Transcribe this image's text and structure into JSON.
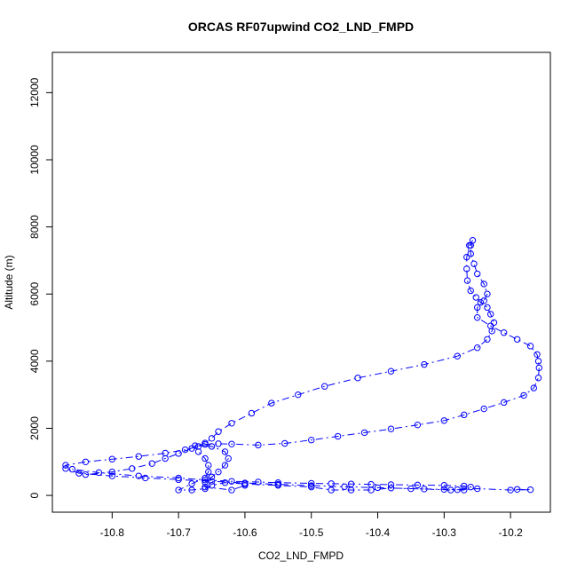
{
  "chart_data": {
    "type": "scatter",
    "title": "ORCAS RF07upwind CO2_LND_FMPD",
    "xlabel": "CO2_LND_FMPD",
    "ylabel": "Altitude (m)",
    "xlim": [
      -10.89,
      -10.14
    ],
    "ylim": [
      -500,
      13200
    ],
    "x_ticks": [
      -10.8,
      -10.7,
      -10.6,
      -10.5,
      -10.4,
      -10.3,
      -10.2
    ],
    "x_tick_labels": [
      "-10.8",
      "-10.7",
      "-10.6",
      "-10.5",
      "-10.4",
      "-10.3",
      "-10.2"
    ],
    "y_ticks": [
      0,
      2000,
      4000,
      6000,
      8000,
      10000,
      12000
    ],
    "y_tick_labels": [
      "0",
      "2000",
      "4000",
      "6000",
      "8000",
      "10000",
      "12000"
    ],
    "grid": false,
    "legend": "none",
    "series": [
      {
        "marker": "open-circle",
        "line": "dash-dot",
        "color": "#0000ff",
        "points": [
          [
            -10.19,
            180
          ],
          [
            -10.17,
            170
          ],
          [
            -10.2,
            160
          ],
          [
            -10.25,
            200
          ],
          [
            -10.28,
            170
          ],
          [
            -10.3,
            180
          ],
          [
            -10.35,
            200
          ],
          [
            -10.4,
            230
          ],
          [
            -10.45,
            260
          ],
          [
            -10.5,
            290
          ],
          [
            -10.55,
            330
          ],
          [
            -10.6,
            370
          ],
          [
            -10.65,
            420
          ],
          [
            -10.7,
            470
          ],
          [
            -10.75,
            520
          ],
          [
            -10.8,
            580
          ],
          [
            -10.85,
            660
          ],
          [
            -10.87,
            800
          ],
          [
            -10.87,
            900
          ],
          [
            -10.84,
            1000
          ],
          [
            -10.8,
            1080
          ],
          [
            -10.76,
            1160
          ],
          [
            -10.72,
            1260
          ],
          [
            -10.69,
            1360
          ],
          [
            -10.67,
            1460
          ],
          [
            -10.66,
            1520
          ],
          [
            -10.64,
            1540
          ],
          [
            -10.62,
            1530
          ],
          [
            -10.58,
            1500
          ],
          [
            -10.54,
            1550
          ],
          [
            -10.5,
            1650
          ],
          [
            -10.46,
            1760
          ],
          [
            -10.42,
            1870
          ],
          [
            -10.38,
            1980
          ],
          [
            -10.34,
            2100
          ],
          [
            -10.3,
            2230
          ],
          [
            -10.27,
            2400
          ],
          [
            -10.24,
            2580
          ],
          [
            -10.21,
            2770
          ],
          [
            -10.18,
            2980
          ],
          [
            -10.165,
            3200
          ],
          [
            -10.158,
            3500
          ],
          [
            -10.157,
            3800
          ],
          [
            -10.158,
            4000
          ],
          [
            -10.16,
            4200
          ],
          [
            -10.17,
            4450
          ],
          [
            -10.19,
            4650
          ],
          [
            -10.21,
            4850
          ],
          [
            -10.23,
            5050
          ],
          [
            -10.25,
            5300
          ],
          [
            -10.25,
            5600
          ],
          [
            -10.24,
            5800
          ],
          [
            -10.235,
            6000
          ],
          [
            -10.24,
            6300
          ],
          [
            -10.25,
            6600
          ],
          [
            -10.255,
            6900
          ],
          [
            -10.26,
            7200
          ],
          [
            -10.26,
            7450
          ],
          [
            -10.257,
            7600
          ],
          [
            -10.262,
            7450
          ],
          [
            -10.266,
            7100
          ],
          [
            -10.266,
            6750
          ],
          [
            -10.265,
            6400
          ],
          [
            -10.26,
            6100
          ],
          [
            -10.252,
            5900
          ],
          [
            -10.245,
            5750
          ],
          [
            -10.235,
            5600
          ],
          [
            -10.23,
            5400
          ],
          [
            -10.225,
            5150
          ],
          [
            -10.228,
            4900
          ],
          [
            -10.235,
            4650
          ],
          [
            -10.25,
            4400
          ],
          [
            -10.28,
            4150
          ],
          [
            -10.33,
            3900
          ],
          [
            -10.38,
            3700
          ],
          [
            -10.43,
            3500
          ],
          [
            -10.48,
            3250
          ],
          [
            -10.52,
            3000
          ],
          [
            -10.56,
            2750
          ],
          [
            -10.59,
            2450
          ],
          [
            -10.62,
            2150
          ],
          [
            -10.64,
            1900
          ],
          [
            -10.65,
            1700
          ],
          [
            -10.66,
            1560
          ],
          [
            -10.68,
            1400
          ],
          [
            -10.7,
            1250
          ],
          [
            -10.72,
            1100
          ],
          [
            -10.74,
            950
          ],
          [
            -10.77,
            800
          ],
          [
            -10.8,
            700
          ],
          [
            -10.84,
            620
          ],
          [
            -10.86,
            780
          ],
          [
            -10.82,
            680
          ],
          [
            -10.76,
            580
          ],
          [
            -10.7,
            520
          ],
          [
            -10.66,
            460
          ],
          [
            -10.62,
            420
          ],
          [
            -10.58,
            400
          ],
          [
            -10.55,
            380
          ],
          [
            -10.5,
            360
          ],
          [
            -10.47,
            350
          ],
          [
            -10.44,
            340
          ],
          [
            -10.41,
            330
          ],
          [
            -10.38,
            320
          ],
          [
            -10.34,
            310
          ],
          [
            -10.3,
            300
          ],
          [
            -10.27,
            280
          ],
          [
            -10.26,
            250
          ],
          [
            -10.27,
            160
          ],
          [
            -10.29,
            160
          ],
          [
            -10.33,
            190
          ],
          [
            -10.38,
            220
          ],
          [
            -10.41,
            160
          ],
          [
            -10.44,
            160
          ],
          [
            -10.47,
            160
          ],
          [
            -10.5,
            250
          ],
          [
            -10.55,
            300
          ],
          [
            -10.6,
            340
          ],
          [
            -10.63,
            380
          ],
          [
            -10.65,
            300
          ],
          [
            -10.66,
            200
          ],
          [
            -10.68,
            160
          ],
          [
            -10.7,
            160
          ],
          [
            -10.68,
            350
          ],
          [
            -10.66,
            520
          ],
          [
            -10.655,
            700
          ],
          [
            -10.655,
            900
          ],
          [
            -10.66,
            1100
          ],
          [
            -10.67,
            1300
          ],
          [
            -10.675,
            1480
          ],
          [
            -10.65,
            1460
          ],
          [
            -10.63,
            1300
          ],
          [
            -10.625,
            1100
          ],
          [
            -10.63,
            900
          ],
          [
            -10.64,
            700
          ],
          [
            -10.65,
            550
          ],
          [
            -10.66,
            400
          ],
          [
            -10.66,
            250
          ],
          [
            -10.62,
            160
          ],
          [
            -10.6,
            300
          ]
        ]
      }
    ]
  }
}
